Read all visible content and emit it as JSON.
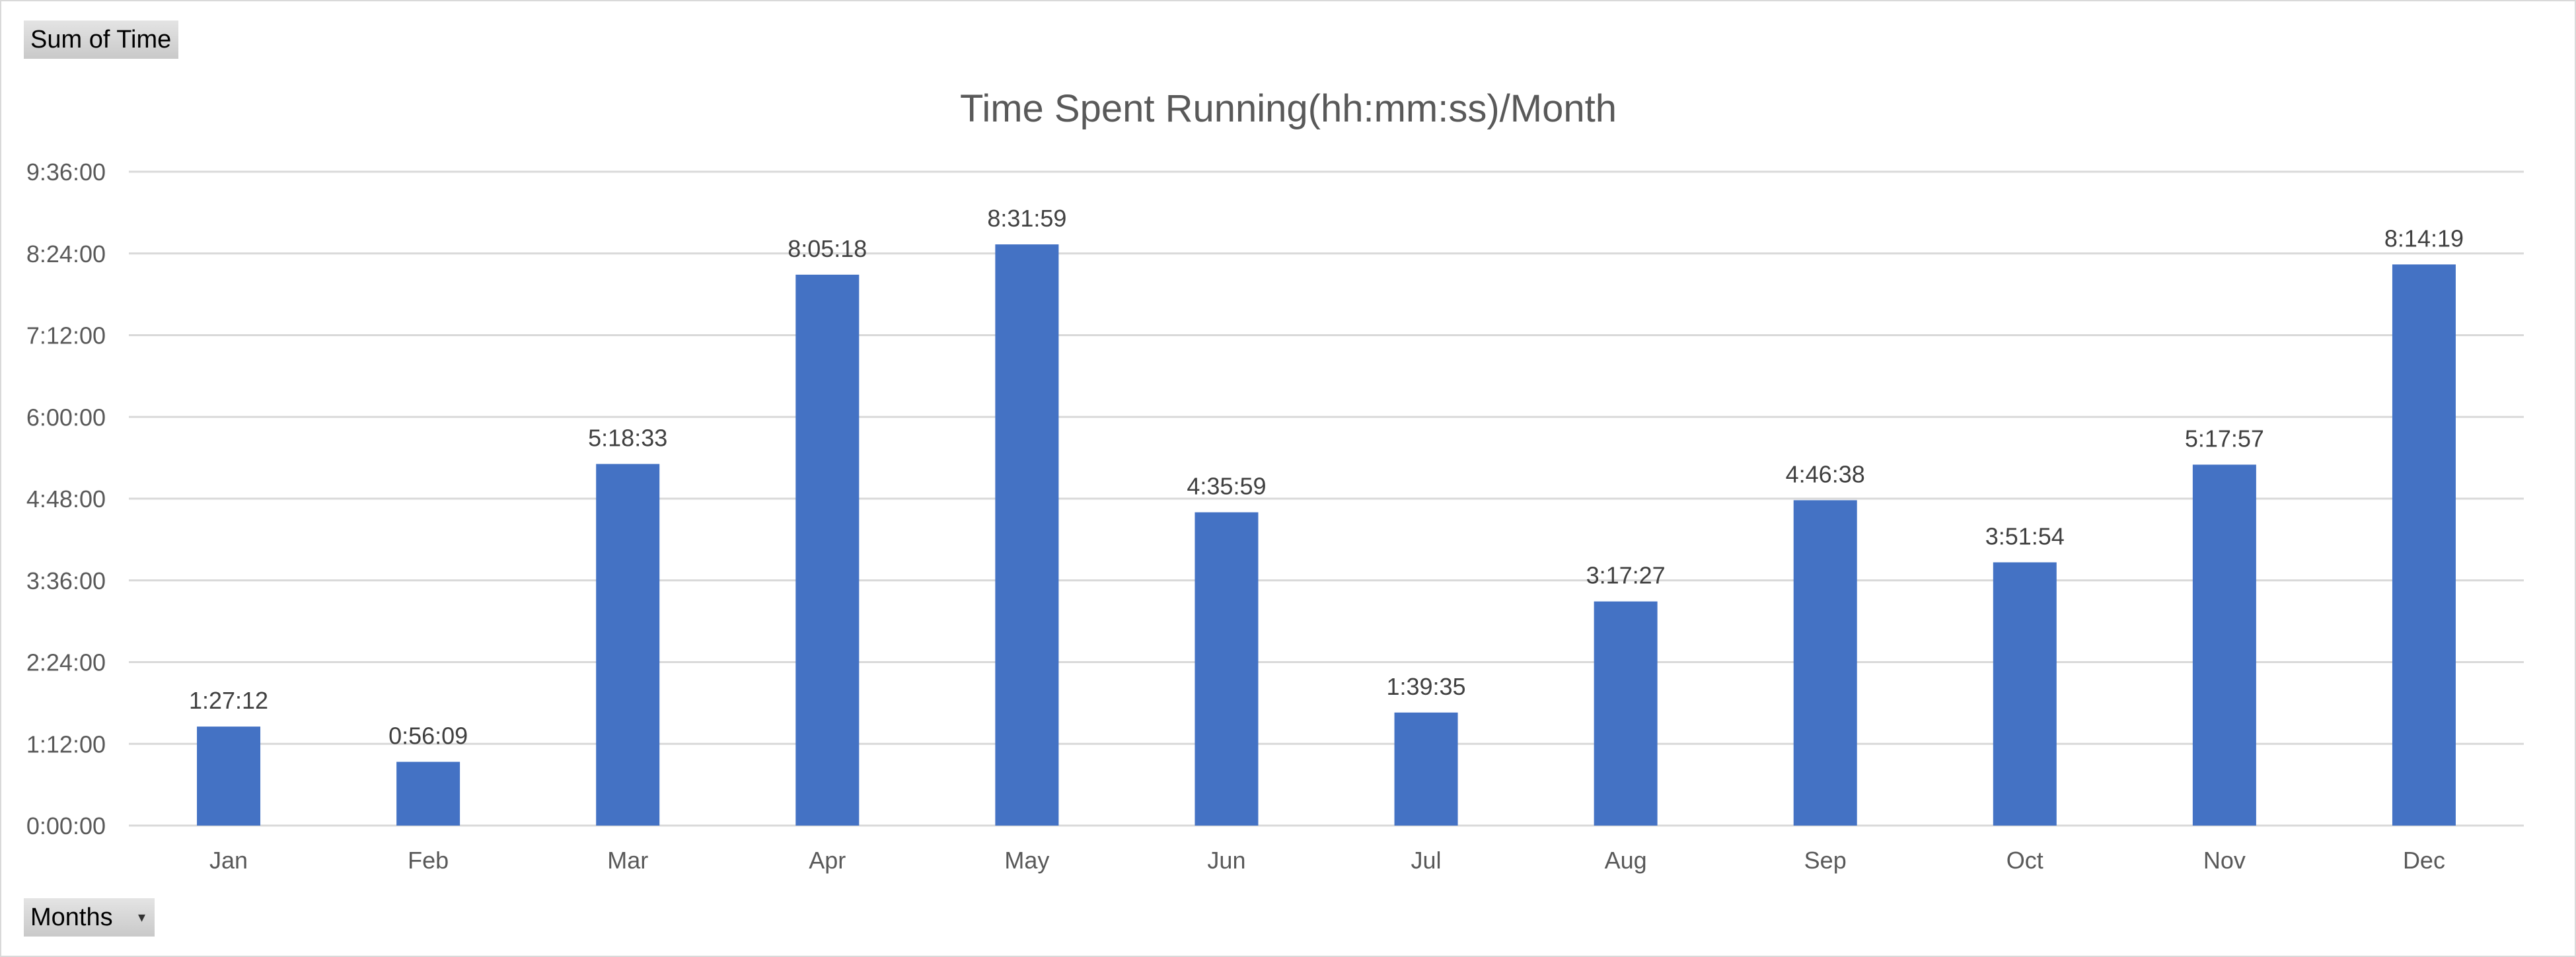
{
  "pivot": {
    "value_field_label": "Sum of Time",
    "axis_field_label": "Months"
  },
  "colors": {
    "bar": "#4472c4",
    "grid": "#d9d9d9",
    "text": "#595959"
  },
  "chart_data": {
    "type": "bar",
    "title": "Time Spent Running(hh:mm:ss)/Month",
    "xlabel": "",
    "ylabel": "",
    "categories": [
      "Jan",
      "Feb",
      "Mar",
      "Apr",
      "May",
      "Jun",
      "Jul",
      "Aug",
      "Sep",
      "Oct",
      "Nov",
      "Dec"
    ],
    "values": [
      "1:27:12",
      "0:56:09",
      "5:18:33",
      "8:05:18",
      "8:31:59",
      "4:35:59",
      "1:39:35",
      "3:17:27",
      "4:46:38",
      "3:51:54",
      "5:17:57",
      "8:14:19"
    ],
    "ylim": [
      "0:00:00",
      "9:36:00"
    ],
    "y_ticks": [
      "0:00:00",
      "1:12:00",
      "2:24:00",
      "3:36:00",
      "4:48:00",
      "6:00:00",
      "7:12:00",
      "8:24:00",
      "9:36:00"
    ],
    "data_labels": true,
    "grid": true,
    "legend": "none"
  }
}
